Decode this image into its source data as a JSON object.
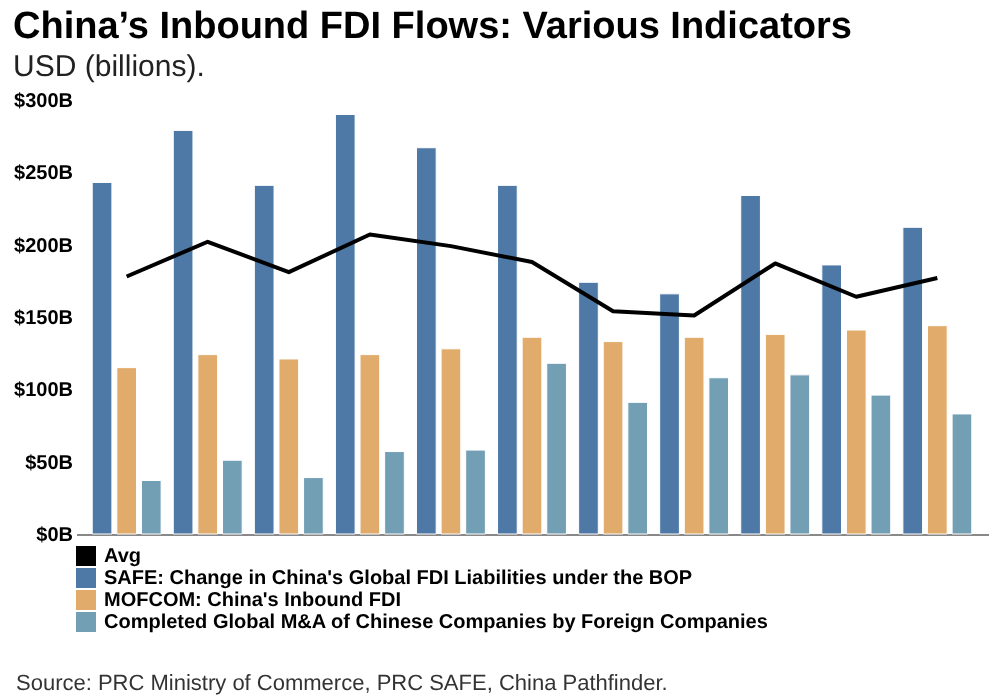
{
  "chart_data": {
    "type": "bar",
    "title": "China’s Inbound FDI Flows: Various Indicators",
    "subtitle": "USD (billions).",
    "categories": [
      null,
      null,
      null,
      null,
      null,
      null,
      null,
      null,
      null,
      null,
      null
    ],
    "series": [
      {
        "name": "Avg",
        "type": "line",
        "color": "#000000",
        "values": [
          178,
          202,
          181,
          207,
          199,
          188,
          154,
          151,
          187,
          164,
          177
        ]
      },
      {
        "name": "SAFE: Change in China's Global FDI Liabilities under the BOP",
        "color": "#4e79a7",
        "values": [
          243,
          279,
          241,
          290,
          267,
          241,
          174,
          166,
          234,
          186,
          212
        ]
      },
      {
        "name": "MOFCOM: China's Inbound FDI",
        "color": "#e0ab6b",
        "values": [
          115,
          124,
          121,
          124,
          128,
          136,
          133,
          136,
          138,
          141,
          144
        ]
      },
      {
        "name": "Completed Global M&A of Chinese Companies by Foreign Companies",
        "color": "#739fb5",
        "values": [
          37,
          51,
          39,
          57,
          58,
          118,
          91,
          108,
          110,
          96,
          83
        ]
      }
    ],
    "ylim": [
      0,
      300
    ],
    "yticks": [
      {
        "value": 0,
        "label": "$0B"
      },
      {
        "value": 50,
        "label": "$50B"
      },
      {
        "value": 100,
        "label": "$100B"
      },
      {
        "value": 150,
        "label": "$150B"
      },
      {
        "value": 200,
        "label": "$200B"
      },
      {
        "value": 250,
        "label": "$250B"
      },
      {
        "value": 300,
        "label": "$300B"
      }
    ],
    "tick_labels": "y",
    "grid": false,
    "legend": "bottom",
    "annotations": [
      "Source: PRC Ministry of Commerce, PRC SAFE, China Pathfinder."
    ]
  }
}
